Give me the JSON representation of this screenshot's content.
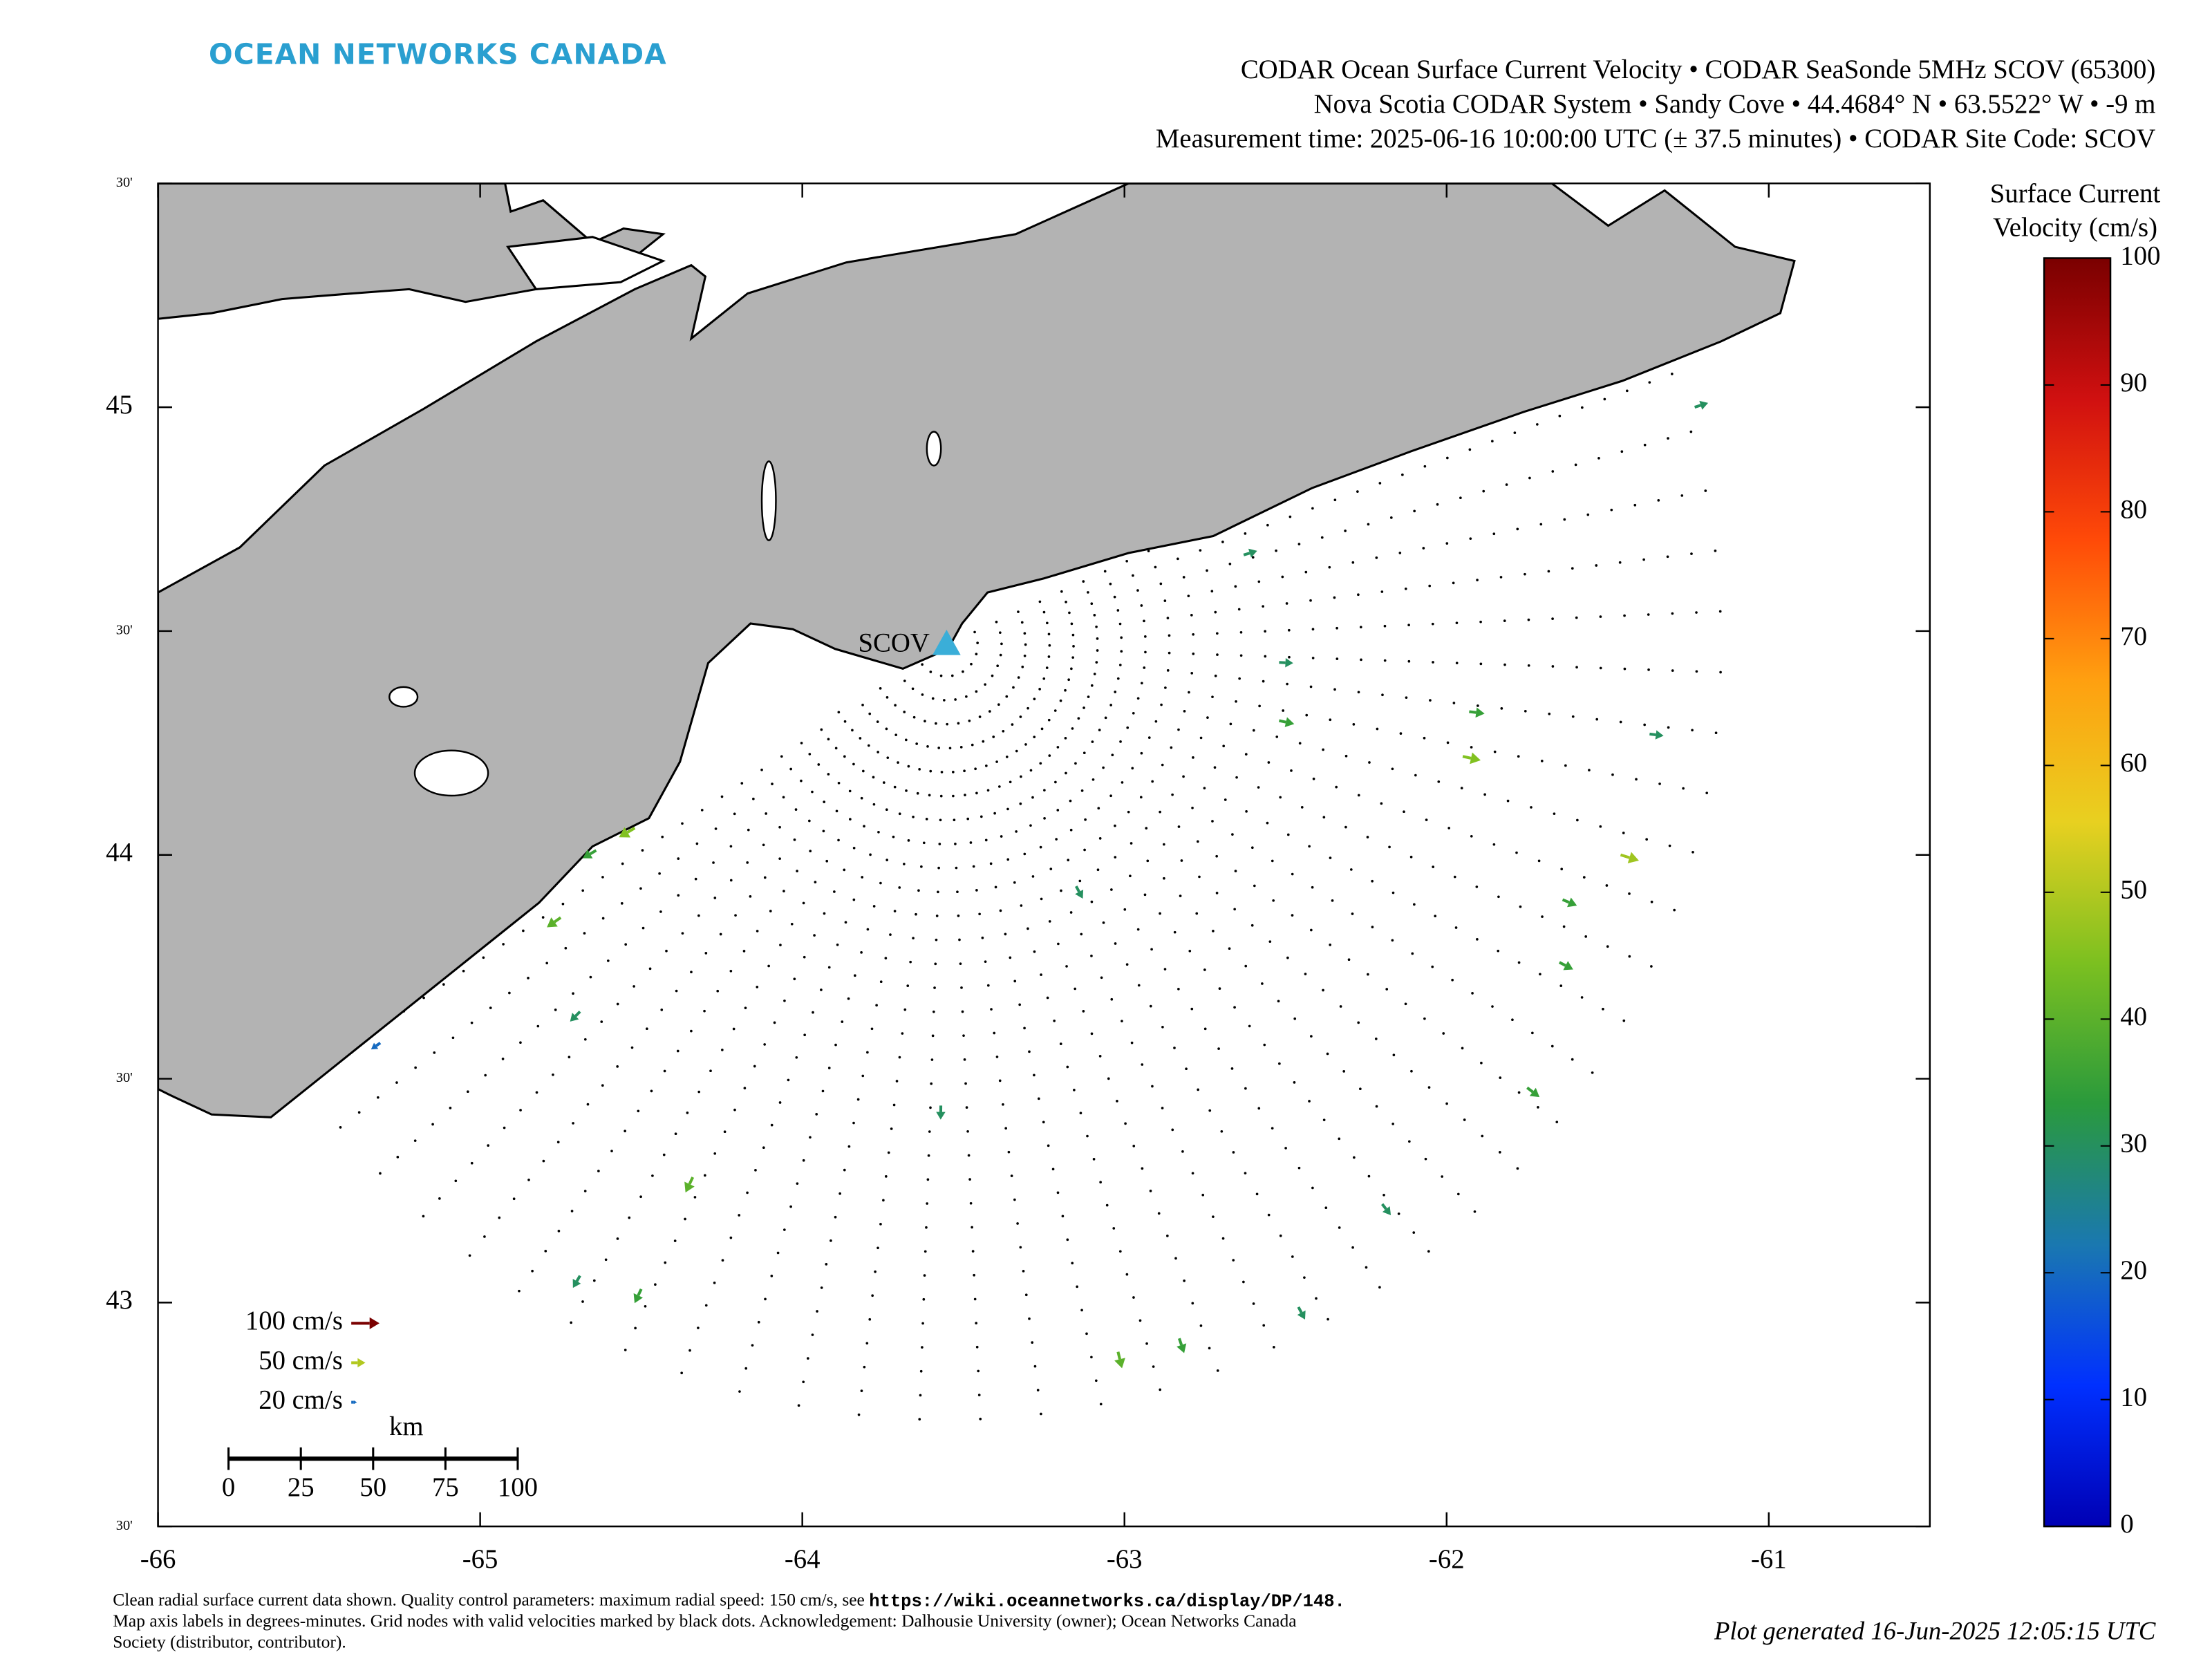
{
  "logo": "OCEAN NETWORKS CANADA",
  "title_lines": [
    "CODAR Ocean Surface Current Velocity • CODAR SeaSonde 5MHz SCOV (65300)",
    "Nova Scotia CODAR System • Sandy Cove • 44.4684° N • 63.5522° W • -9 m",
    "Measurement time: 2025-06-16 10:00:00 UTC (± 37.5 minutes) • CODAR Site Code: SCOV"
  ],
  "map": {
    "xlim": [
      -66,
      -60.5
    ],
    "ylim": [
      42.5,
      45.5
    ],
    "xticks": [
      -66,
      -65,
      -64,
      -63,
      -62,
      -61
    ],
    "yticks": [
      {
        "value": 42.5,
        "label": "30'"
      },
      43,
      {
        "value": 43.5,
        "label": "30'"
      },
      44,
      {
        "value": 44.5,
        "label": "30'"
      },
      45,
      {
        "value": 45.5,
        "label": "30'"
      }
    ],
    "land_color": "#b3b3b3",
    "site": {
      "label": "SCOV",
      "lon": -63.5522,
      "lat": 44.4684,
      "color": "#3aaed8"
    }
  },
  "vectors": {
    "lon": [
      -61.23,
      -62.63,
      -62.52,
      -62.52,
      -61.93,
      -61.95,
      -61.46,
      -61.65,
      -61.75,
      -62.2,
      -62.83,
      -63.02,
      -63.57,
      -64.34,
      -64.5,
      -64.69,
      -64.69,
      -64.75,
      -64.52,
      -64.64,
      -63.15,
      -61.64,
      -61.37,
      -65.31,
      -62.46
    ],
    "lat": [
      45.0,
      44.67,
      44.43,
      44.3,
      44.32,
      44.22,
      44.0,
      43.76,
      43.48,
      43.22,
      42.92,
      42.89,
      43.44,
      43.28,
      43.03,
      43.06,
      43.65,
      43.86,
      44.06,
      44.01,
      43.93,
      43.9,
      44.27,
      43.58,
      42.99
    ],
    "speed": [
      30,
      30,
      30,
      35,
      35,
      45,
      48,
      35,
      35,
      30,
      35,
      40,
      30,
      40,
      35,
      30,
      30,
      40,
      45,
      35,
      30,
      35,
      30,
      20,
      30
    ]
  },
  "legend": [
    {
      "label": "100 cm/s",
      "speed": 100
    },
    {
      "label": "50 cm/s",
      "speed": 50
    },
    {
      "label": "20 cm/s",
      "speed": 20
    }
  ],
  "scale_bar": {
    "unit": "km",
    "ticks": [
      0,
      25,
      50,
      75,
      100
    ]
  },
  "colorbar": {
    "title": [
      "Surface Current",
      "Velocity (cm/s)"
    ],
    "lim": [
      0,
      100
    ],
    "ticks": [
      0,
      10,
      20,
      30,
      40,
      50,
      60,
      70,
      80,
      90,
      100
    ],
    "colors": [
      "#0000b4",
      "#0030ff",
      "#1a78b0",
      "#2a9a3c",
      "#7cc020",
      "#e8d020",
      "#ffa010",
      "#ff4a08",
      "#d01010",
      "#7a0000"
    ]
  },
  "footnote": [
    [
      "Clean radial surface current data shown. Quality control parameters: maximum radial speed: 150 cm/s, see ",
      "https://wiki.oceannetworks.ca/display/DP/148."
    ],
    [
      "Map axis labels in degrees-minutes. Grid nodes with valid velocities marked by black dots. Acknowledgement: Dalhousie University (owner); Ocean Networks Canada"
    ],
    [
      "Society (distributor, contributor)."
    ]
  ],
  "generated": "Plot generated 16-Jun-2025 12:05:15 UTC"
}
